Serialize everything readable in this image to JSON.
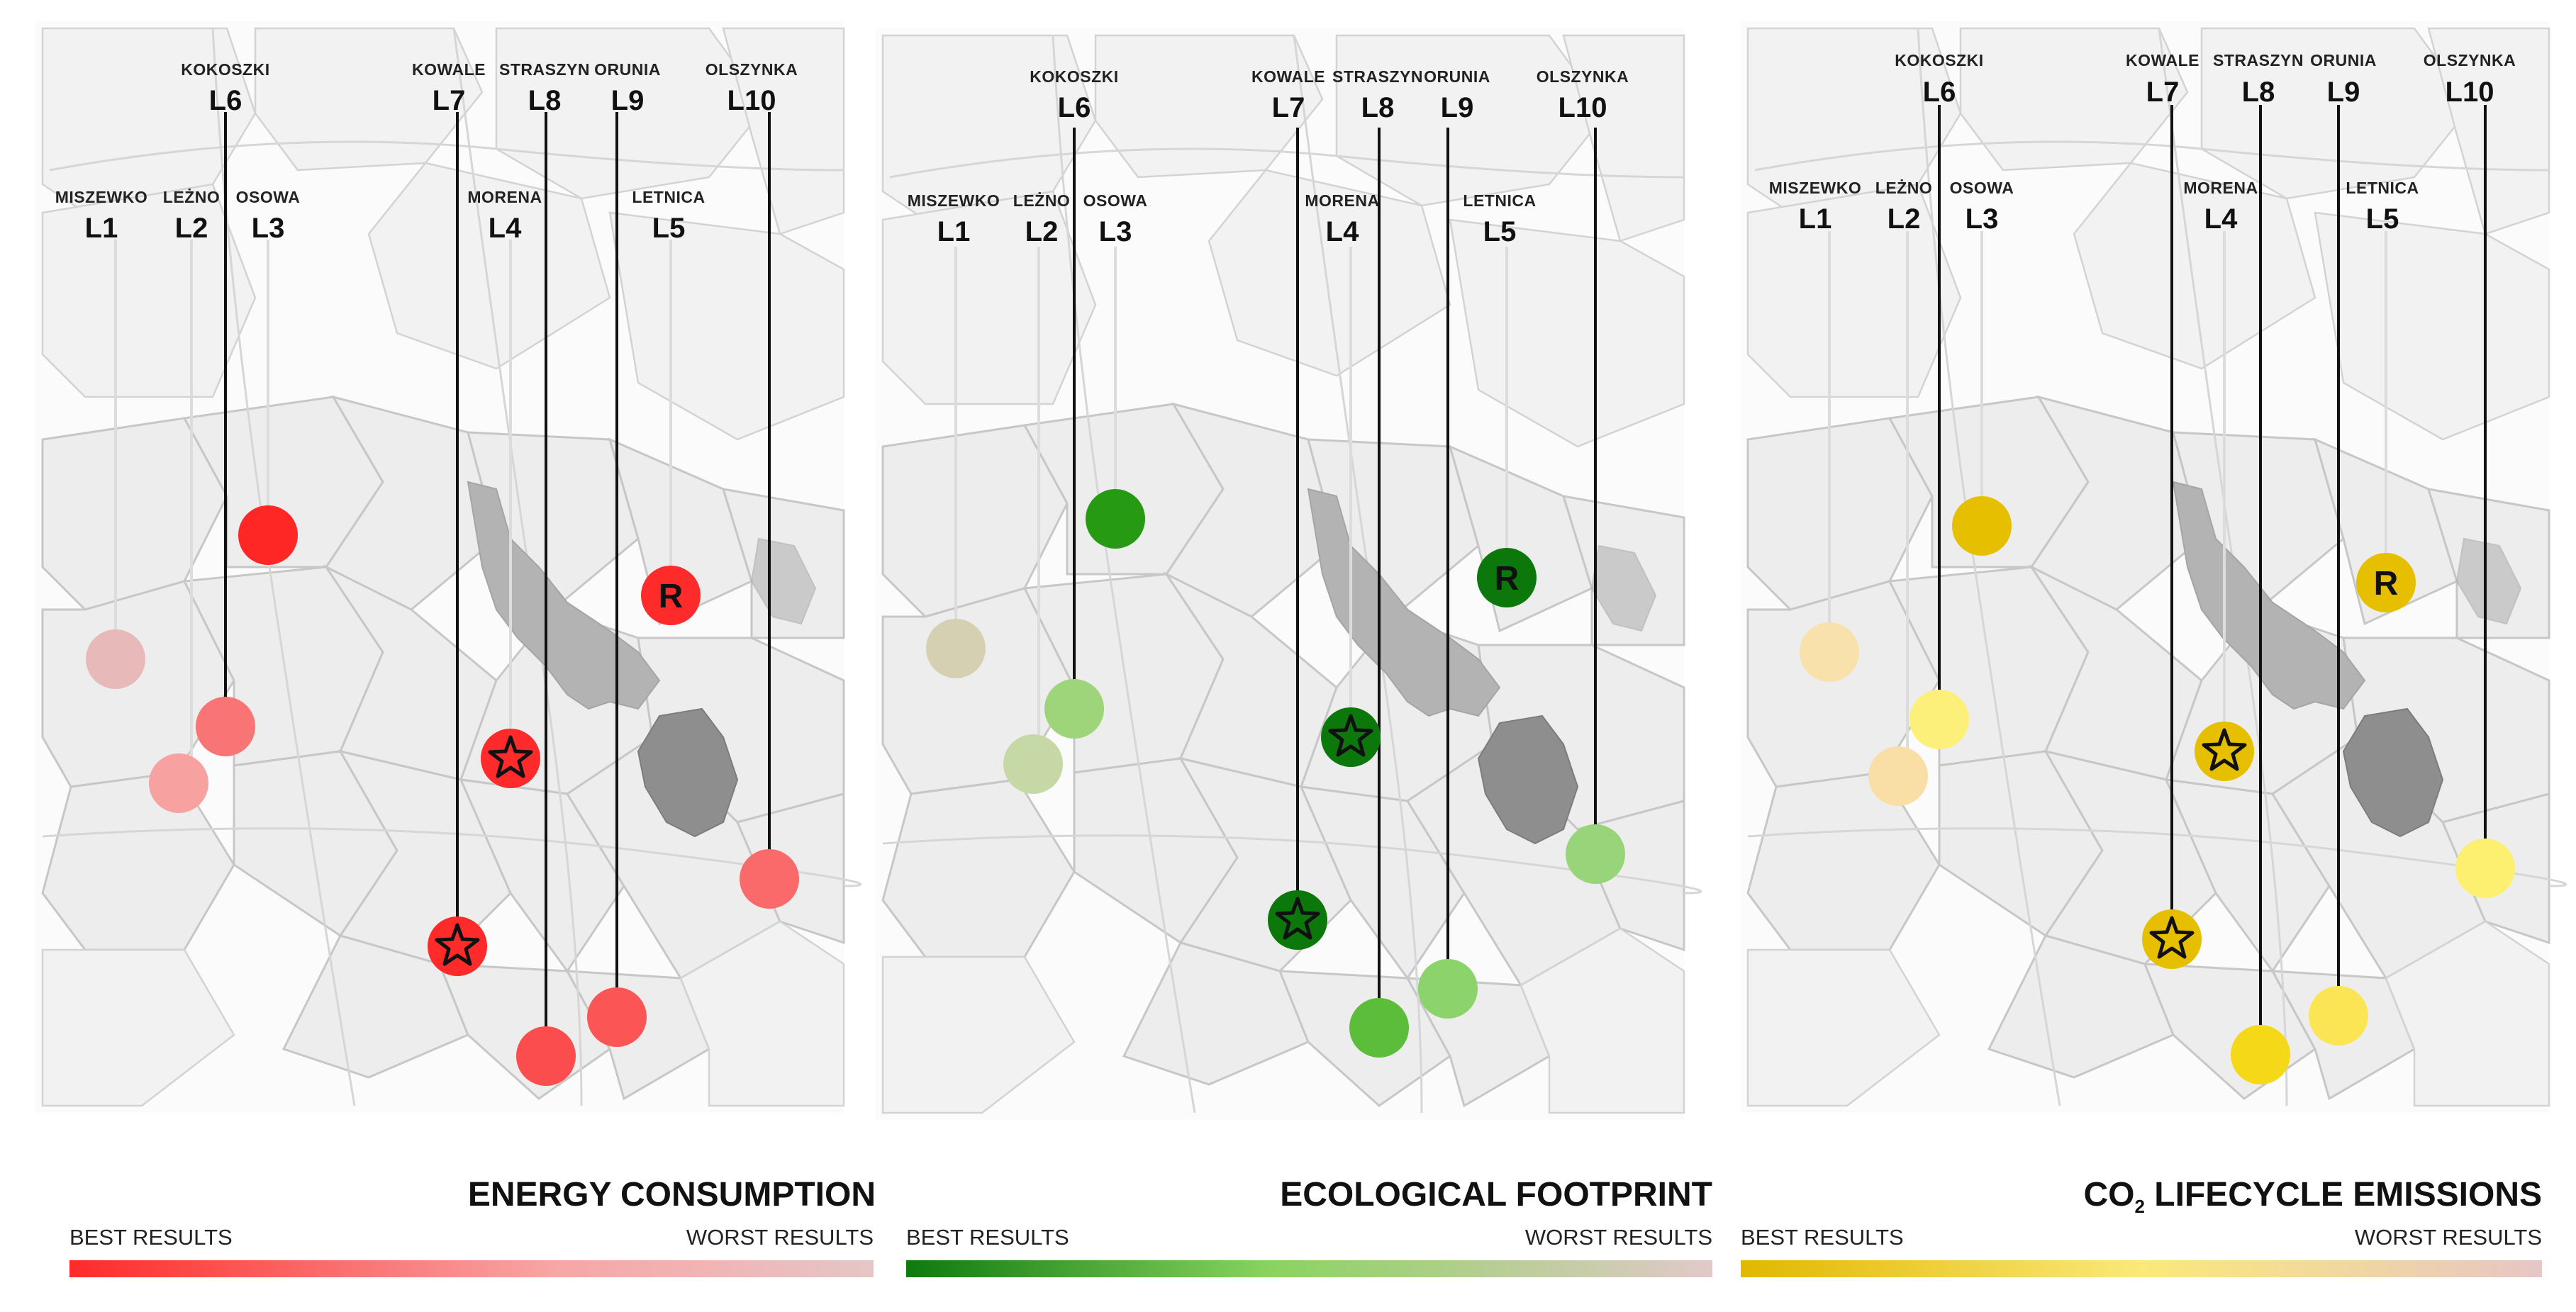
{
  "locations": [
    {
      "code": "L1",
      "name": "MISZEWKO"
    },
    {
      "code": "L2",
      "name": "LEŻNO"
    },
    {
      "code": "L3",
      "name": "OSOWA"
    },
    {
      "code": "L4",
      "name": "MORENA"
    },
    {
      "code": "L5",
      "name": "LETNICA"
    },
    {
      "code": "L6",
      "name": "KOKOSZKI"
    },
    {
      "code": "L7",
      "name": "KOWALE"
    },
    {
      "code": "L8",
      "name": "STRASZYN"
    },
    {
      "code": "L9",
      "name": "ORUNIA"
    },
    {
      "code": "L10",
      "name": "OLSZYNKA"
    }
  ],
  "reference_marker": "R",
  "panels": [
    {
      "id": "energy",
      "title": "ENERGY CONSUMPTION",
      "title_main": "ENERGY CONSUMPTION",
      "best_label": "BEST RESULTS",
      "worst_label": "WORST RESULTS",
      "gradient": [
        "#ff2a2a",
        "#f8a5a5",
        "#e6c6c6"
      ],
      "colors": {
        "L1": "#e8b9b9",
        "L2": "#f7a1a1",
        "L3": "#ff2626",
        "L4": "#ff2a2a",
        "L5": "#ff2a2a",
        "L6": "#f97474",
        "L7": "#ff2a2a",
        "L8": "#fb4d4d",
        "L9": "#fb5555",
        "L10": "#fb6a6a"
      },
      "stars": [
        "L4",
        "L7"
      ]
    },
    {
      "id": "footprint",
      "title": "ECOLOGICAL FOOTPRINT",
      "title_main": "ECOLOGICAL FOOTPRINT",
      "best_label": "BEST RESULTS",
      "worst_label": "WORST RESULTS",
      "gradient": [
        "#0e7a0e",
        "#8ad35f",
        "#e2c9c9"
      ],
      "colors": {
        "L1": "#d6d0b2",
        "L2": "#c6d8a6",
        "L3": "#269a12",
        "L4": "#0c780c",
        "L5": "#0c780c",
        "L6": "#9ed47a",
        "L7": "#0c780c",
        "L8": "#5cbd3a",
        "L9": "#8bd36a",
        "L10": "#98d47a"
      },
      "stars": [
        "L4",
        "L7"
      ]
    },
    {
      "id": "co2",
      "title": "CO2 LIFECYCLE EMISSIONS",
      "title_main": "CO",
      "title_sub": "2",
      "title_rest": " LIFECYCLE EMISSIONS",
      "best_label": "BEST RESULTS",
      "worst_label": "WORST RESULTS",
      "gradient": [
        "#e0b800",
        "#fbe979",
        "#e6c6c6"
      ],
      "colors": {
        "L1": "#f8e1aa",
        "L2": "#f9dea6",
        "L3": "#e6c000",
        "L4": "#e6c000",
        "L5": "#e6c000",
        "L6": "#fdf07a",
        "L7": "#e6c000",
        "L8": "#f5d818",
        "L9": "#fbe555",
        "L10": "#fdef70"
      },
      "stars": [
        "L4",
        "L7"
      ]
    }
  ]
}
